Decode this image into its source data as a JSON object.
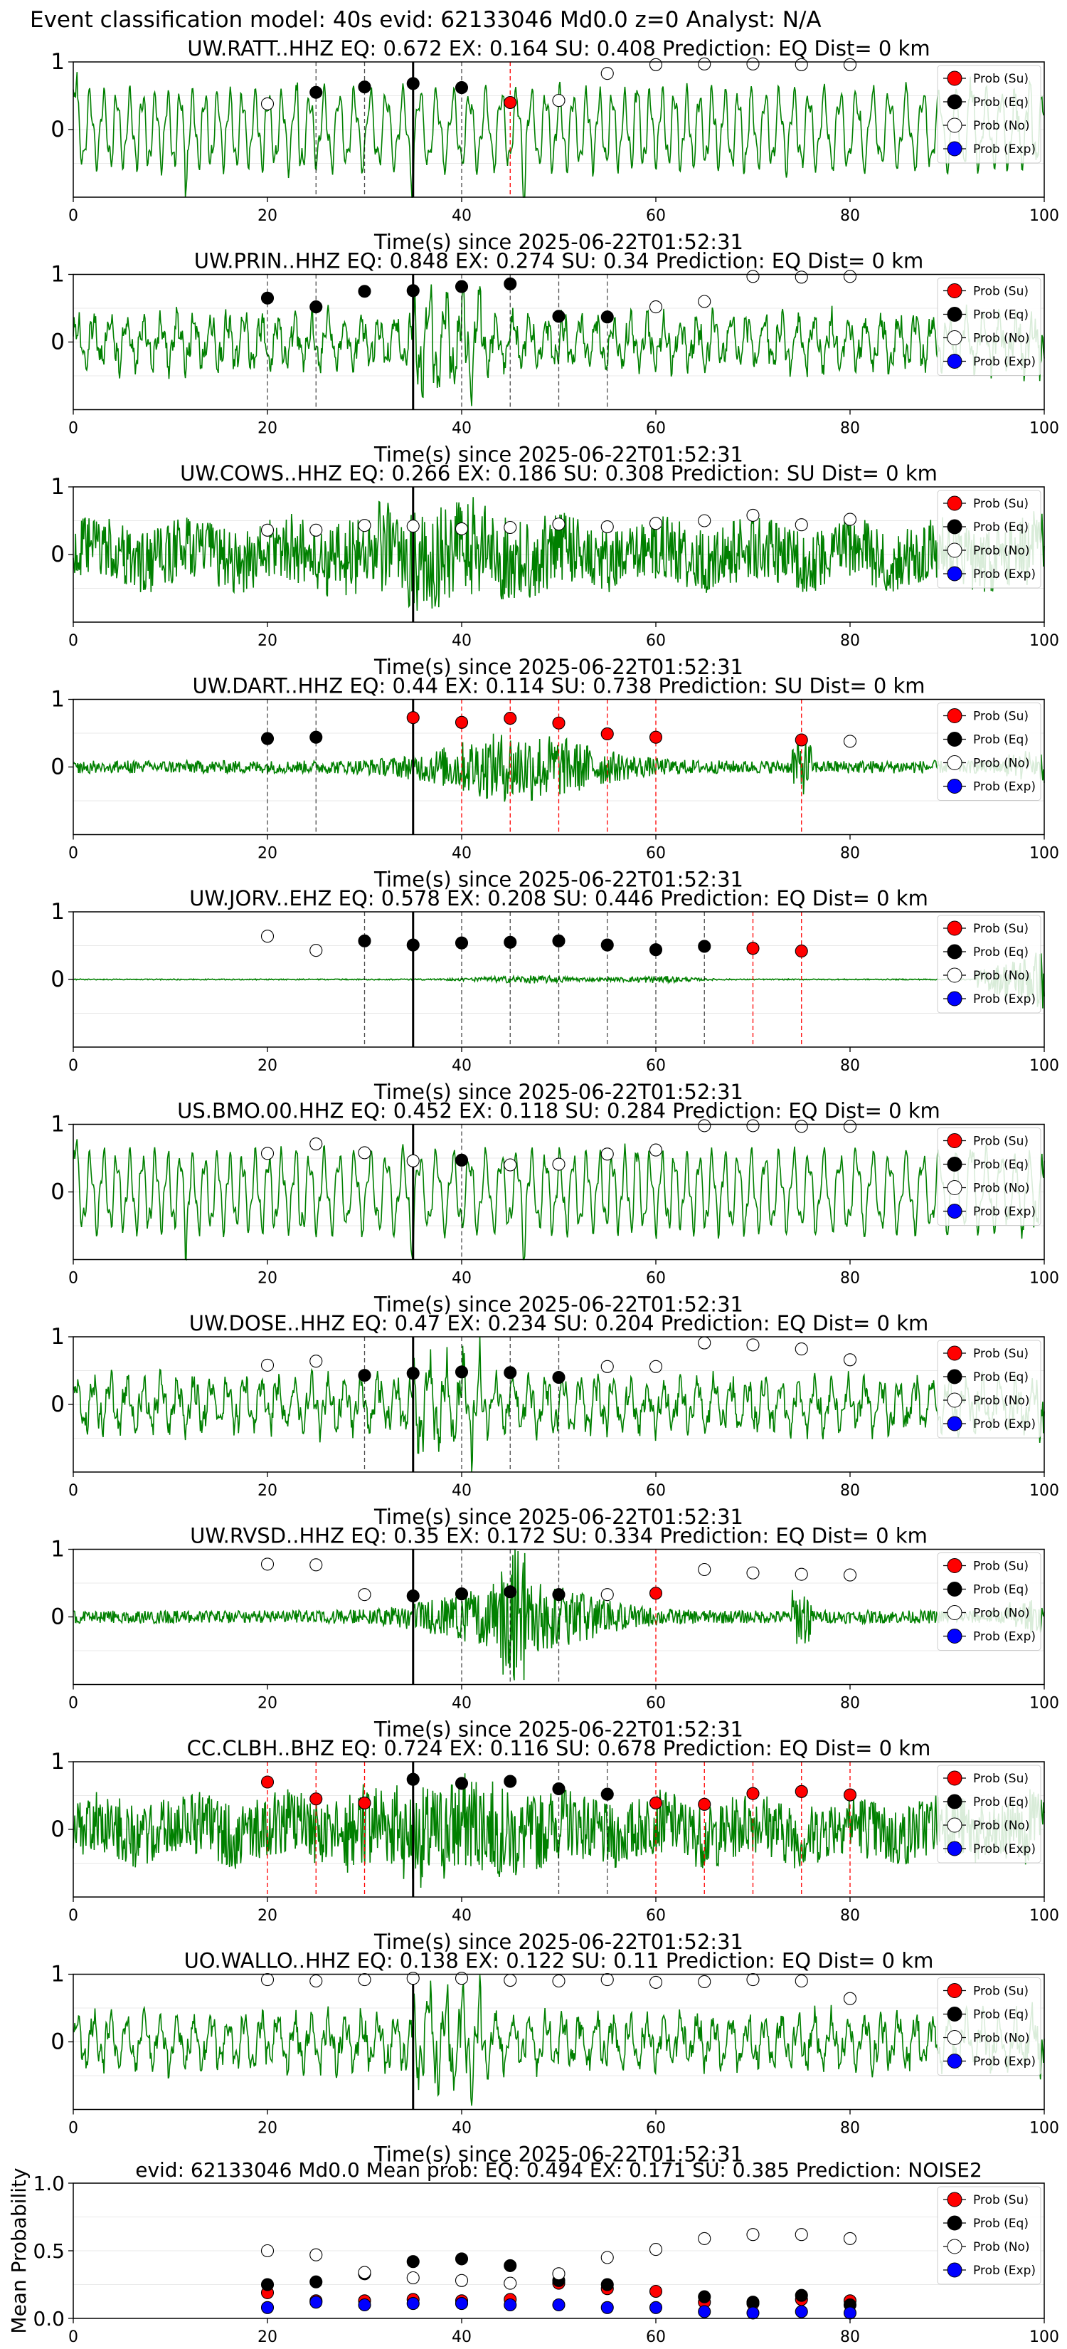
{
  "suptitle": "Event classification model: 40s evid: 62133046 Md0.0 z=0 Analyst: N/A",
  "legend_labels": [
    "Prob (Su)",
    "Prob (Eq)",
    "Prob (No)",
    "Prob (Exp)"
  ],
  "colors": {
    "su": "#ff0000",
    "eq": "#000000",
    "no": "#ffffff",
    "exp": "#0000ff",
    "trace": "#008000"
  },
  "chart_data": [
    {
      "type": "line",
      "title": "UW.RATT..HHZ   EQ: 0.672  EX: 0.164  SU: 0.408   Prediction: EQ    Dist= 0 km",
      "xlabel": "Time(s) since 2025-06-22T01:52:31",
      "ylabel": "",
      "xlim": [
        0,
        100
      ],
      "ylim": [
        -1,
        1
      ],
      "xticks": [
        0,
        20,
        40,
        60,
        80,
        100
      ],
      "yticks": [
        0,
        1
      ],
      "grid": "y-only",
      "legend": "top-right",
      "waveform": "low-frequency",
      "pick_time": 35,
      "eq_dashed": [
        25,
        30,
        40
      ],
      "su_dashed": [
        45
      ],
      "points": [
        {
          "t": 20,
          "v": 0.38,
          "c": "no"
        },
        {
          "t": 25,
          "v": 0.55,
          "c": "eq"
        },
        {
          "t": 30,
          "v": 0.63,
          "c": "eq"
        },
        {
          "t": 35,
          "v": 0.68,
          "c": "eq"
        },
        {
          "t": 40,
          "v": 0.62,
          "c": "eq"
        },
        {
          "t": 45,
          "v": 0.4,
          "c": "su"
        },
        {
          "t": 50,
          "v": 0.43,
          "c": "no"
        },
        {
          "t": 55,
          "v": 0.83,
          "c": "no"
        },
        {
          "t": 60,
          "v": 0.96,
          "c": "no"
        },
        {
          "t": 65,
          "v": 0.97,
          "c": "no"
        },
        {
          "t": 70,
          "v": 0.97,
          "c": "no"
        },
        {
          "t": 75,
          "v": 0.96,
          "c": "no"
        },
        {
          "t": 80,
          "v": 0.96,
          "c": "no"
        }
      ]
    },
    {
      "type": "line",
      "title": "UW.PRIN..HHZ   EQ: 0.848  EX: 0.274  SU: 0.34   Prediction: EQ    Dist= 0 km",
      "xlabel": "Time(s) since 2025-06-22T01:52:31",
      "ylabel": "",
      "xlim": [
        0,
        100
      ],
      "ylim": [
        -1,
        1
      ],
      "xticks": [
        0,
        20,
        40,
        60,
        80,
        100
      ],
      "yticks": [
        0,
        1
      ],
      "grid": "y-only",
      "legend": "top-right",
      "waveform": "mixed",
      "pick_time": 35,
      "eq_dashed": [
        20,
        25,
        40,
        45,
        50,
        55
      ],
      "su_dashed": [],
      "points": [
        {
          "t": 20,
          "v": 0.65,
          "c": "eq"
        },
        {
          "t": 25,
          "v": 0.52,
          "c": "eq"
        },
        {
          "t": 30,
          "v": 0.75,
          "c": "eq"
        },
        {
          "t": 35,
          "v": 0.76,
          "c": "eq"
        },
        {
          "t": 40,
          "v": 0.82,
          "c": "eq"
        },
        {
          "t": 45,
          "v": 0.86,
          "c": "eq"
        },
        {
          "t": 50,
          "v": 0.38,
          "c": "eq"
        },
        {
          "t": 55,
          "v": 0.37,
          "c": "eq"
        },
        {
          "t": 60,
          "v": 0.52,
          "c": "no"
        },
        {
          "t": 65,
          "v": 0.6,
          "c": "no"
        },
        {
          "t": 70,
          "v": 0.97,
          "c": "no"
        },
        {
          "t": 75,
          "v": 0.96,
          "c": "no"
        },
        {
          "t": 80,
          "v": 0.97,
          "c": "no"
        }
      ]
    },
    {
      "type": "line",
      "title": "UW.COWS..HHZ   EQ: 0.266  EX: 0.186  SU: 0.308   Prediction: SU    Dist= 0 km",
      "xlabel": "Time(s) since 2025-06-22T01:52:31",
      "ylabel": "",
      "xlim": [
        0,
        100
      ],
      "ylim": [
        -1,
        1
      ],
      "xticks": [
        0,
        20,
        40,
        60,
        80,
        100
      ],
      "yticks": [
        0,
        1
      ],
      "grid": "y-only",
      "legend": "top-right",
      "waveform": "high-frequency",
      "pick_time": 35,
      "eq_dashed": [],
      "su_dashed": [],
      "points": [
        {
          "t": 20,
          "v": 0.36,
          "c": "no"
        },
        {
          "t": 25,
          "v": 0.36,
          "c": "no"
        },
        {
          "t": 30,
          "v": 0.43,
          "c": "no"
        },
        {
          "t": 35,
          "v": 0.42,
          "c": "no"
        },
        {
          "t": 40,
          "v": 0.38,
          "c": "no"
        },
        {
          "t": 45,
          "v": 0.4,
          "c": "no"
        },
        {
          "t": 50,
          "v": 0.45,
          "c": "no"
        },
        {
          "t": 55,
          "v": 0.41,
          "c": "no"
        },
        {
          "t": 60,
          "v": 0.46,
          "c": "no"
        },
        {
          "t": 65,
          "v": 0.5,
          "c": "no"
        },
        {
          "t": 70,
          "v": 0.58,
          "c": "no"
        },
        {
          "t": 75,
          "v": 0.44,
          "c": "no"
        },
        {
          "t": 80,
          "v": 0.52,
          "c": "no"
        }
      ]
    },
    {
      "type": "line",
      "title": "UW.DART..HHZ   EQ: 0.44  EX: 0.114  SU: 0.738   Prediction: SU    Dist= 0 km",
      "xlabel": "Time(s) since 2025-06-22T01:52:31",
      "ylabel": "",
      "xlim": [
        0,
        100
      ],
      "ylim": [
        -1,
        1
      ],
      "xticks": [
        0,
        20,
        40,
        60,
        80,
        100
      ],
      "yticks": [
        0,
        1
      ],
      "grid": "y-only",
      "legend": "top-right",
      "waveform": "burst",
      "pick_time": 35,
      "eq_dashed": [
        20,
        25
      ],
      "su_dashed": [
        40,
        45,
        50,
        55,
        60,
        75
      ],
      "points": [
        {
          "t": 20,
          "v": 0.42,
          "c": "eq"
        },
        {
          "t": 25,
          "v": 0.44,
          "c": "eq"
        },
        {
          "t": 35,
          "v": 0.73,
          "c": "su"
        },
        {
          "t": 40,
          "v": 0.66,
          "c": "su"
        },
        {
          "t": 45,
          "v": 0.72,
          "c": "su"
        },
        {
          "t": 50,
          "v": 0.65,
          "c": "su"
        },
        {
          "t": 55,
          "v": 0.49,
          "c": "su"
        },
        {
          "t": 60,
          "v": 0.44,
          "c": "su"
        },
        {
          "t": 75,
          "v": 0.4,
          "c": "su"
        },
        {
          "t": 80,
          "v": 0.38,
          "c": "no"
        }
      ]
    },
    {
      "type": "line",
      "title": "UW.JORV..EHZ   EQ: 0.578  EX: 0.208  SU: 0.446   Prediction: EQ    Dist= 0 km",
      "xlabel": "Time(s) since 2025-06-22T01:52:31",
      "ylabel": "",
      "xlim": [
        0,
        100
      ],
      "ylim": [
        -1,
        1
      ],
      "xticks": [
        0,
        20,
        40,
        60,
        80,
        100
      ],
      "yticks": [
        0,
        1
      ],
      "grid": "y-only",
      "legend": "top-right",
      "waveform": "flat",
      "pick_time": 35,
      "eq_dashed": [
        30,
        40,
        45,
        50,
        55,
        60,
        65
      ],
      "su_dashed": [
        70,
        75
      ],
      "points": [
        {
          "t": 20,
          "v": 0.64,
          "c": "no"
        },
        {
          "t": 25,
          "v": 0.43,
          "c": "no"
        },
        {
          "t": 30,
          "v": 0.57,
          "c": "eq"
        },
        {
          "t": 35,
          "v": 0.51,
          "c": "eq"
        },
        {
          "t": 40,
          "v": 0.54,
          "c": "eq"
        },
        {
          "t": 45,
          "v": 0.55,
          "c": "eq"
        },
        {
          "t": 50,
          "v": 0.57,
          "c": "eq"
        },
        {
          "t": 55,
          "v": 0.51,
          "c": "eq"
        },
        {
          "t": 60,
          "v": 0.44,
          "c": "eq"
        },
        {
          "t": 65,
          "v": 0.49,
          "c": "eq"
        },
        {
          "t": 70,
          "v": 0.46,
          "c": "su"
        },
        {
          "t": 75,
          "v": 0.42,
          "c": "su"
        }
      ]
    },
    {
      "type": "line",
      "title": "US.BMO.00.HHZ   EQ: 0.452  EX: 0.118  SU: 0.284   Prediction: EQ    Dist= 0 km",
      "xlabel": "Time(s) since 2025-06-22T01:52:31",
      "ylabel": "",
      "xlim": [
        0,
        100
      ],
      "ylim": [
        -1,
        1
      ],
      "xticks": [
        0,
        20,
        40,
        60,
        80,
        100
      ],
      "yticks": [
        0,
        1
      ],
      "grid": "y-only",
      "legend": "top-right",
      "waveform": "low-frequency",
      "pick_time": 35,
      "eq_dashed": [
        40
      ],
      "su_dashed": [],
      "points": [
        {
          "t": 20,
          "v": 0.57,
          "c": "no"
        },
        {
          "t": 25,
          "v": 0.71,
          "c": "no"
        },
        {
          "t": 30,
          "v": 0.58,
          "c": "no"
        },
        {
          "t": 35,
          "v": 0.46,
          "c": "no"
        },
        {
          "t": 40,
          "v": 0.47,
          "c": "eq"
        },
        {
          "t": 45,
          "v": 0.4,
          "c": "no"
        },
        {
          "t": 50,
          "v": 0.41,
          "c": "no"
        },
        {
          "t": 55,
          "v": 0.56,
          "c": "no"
        },
        {
          "t": 60,
          "v": 0.62,
          "c": "no"
        },
        {
          "t": 65,
          "v": 0.98,
          "c": "no"
        },
        {
          "t": 70,
          "v": 0.98,
          "c": "no"
        },
        {
          "t": 75,
          "v": 0.97,
          "c": "no"
        },
        {
          "t": 80,
          "v": 0.97,
          "c": "no"
        }
      ]
    },
    {
      "type": "line",
      "title": "UW.DOSE..HHZ   EQ: 0.47  EX: 0.234  SU: 0.204   Prediction: EQ    Dist= 0 km",
      "xlabel": "Time(s) since 2025-06-22T01:52:31",
      "ylabel": "",
      "xlim": [
        0,
        100
      ],
      "ylim": [
        -1,
        1
      ],
      "xticks": [
        0,
        20,
        40,
        60,
        80,
        100
      ],
      "yticks": [
        0,
        1
      ],
      "grid": "y-only",
      "legend": "top-right",
      "waveform": "mixed",
      "pick_time": 35,
      "eq_dashed": [
        30,
        40,
        45,
        50
      ],
      "su_dashed": [],
      "points": [
        {
          "t": 20,
          "v": 0.58,
          "c": "no"
        },
        {
          "t": 25,
          "v": 0.64,
          "c": "no"
        },
        {
          "t": 30,
          "v": 0.43,
          "c": "eq"
        },
        {
          "t": 35,
          "v": 0.46,
          "c": "eq"
        },
        {
          "t": 40,
          "v": 0.48,
          "c": "eq"
        },
        {
          "t": 45,
          "v": 0.47,
          "c": "eq"
        },
        {
          "t": 50,
          "v": 0.4,
          "c": "eq"
        },
        {
          "t": 55,
          "v": 0.56,
          "c": "no"
        },
        {
          "t": 60,
          "v": 0.56,
          "c": "no"
        },
        {
          "t": 65,
          "v": 0.91,
          "c": "no"
        },
        {
          "t": 70,
          "v": 0.88,
          "c": "no"
        },
        {
          "t": 75,
          "v": 0.82,
          "c": "no"
        },
        {
          "t": 80,
          "v": 0.66,
          "c": "no"
        }
      ]
    },
    {
      "type": "line",
      "title": "UW.RVSD..HHZ   EQ: 0.35  EX: 0.172  SU: 0.334   Prediction: EQ    Dist= 0 km",
      "xlabel": "Time(s) since 2025-06-22T01:52:31",
      "ylabel": "",
      "xlim": [
        0,
        100
      ],
      "ylim": [
        -1,
        1
      ],
      "xticks": [
        0,
        20,
        40,
        60,
        80,
        100
      ],
      "yticks": [
        0,
        1
      ],
      "grid": "y-only",
      "legend": "top-right",
      "waveform": "burst",
      "pick_time": 35,
      "eq_dashed": [
        40,
        45,
        50
      ],
      "su_dashed": [
        60
      ],
      "points": [
        {
          "t": 20,
          "v": 0.78,
          "c": "no"
        },
        {
          "t": 25,
          "v": 0.77,
          "c": "no"
        },
        {
          "t": 30,
          "v": 0.33,
          "c": "no"
        },
        {
          "t": 35,
          "v": 0.31,
          "c": "eq"
        },
        {
          "t": 40,
          "v": 0.34,
          "c": "eq"
        },
        {
          "t": 45,
          "v": 0.37,
          "c": "eq"
        },
        {
          "t": 50,
          "v": 0.33,
          "c": "eq"
        },
        {
          "t": 55,
          "v": 0.33,
          "c": "no"
        },
        {
          "t": 60,
          "v": 0.35,
          "c": "su"
        },
        {
          "t": 65,
          "v": 0.7,
          "c": "no"
        },
        {
          "t": 70,
          "v": 0.65,
          "c": "no"
        },
        {
          "t": 75,
          "v": 0.63,
          "c": "no"
        },
        {
          "t": 80,
          "v": 0.62,
          "c": "no"
        }
      ]
    },
    {
      "type": "line",
      "title": "CC.CLBH..BHZ   EQ: 0.724  EX: 0.116  SU: 0.678   Prediction: EQ    Dist= 0 km",
      "xlabel": "Time(s) since 2025-06-22T01:52:31",
      "ylabel": "",
      "xlim": [
        0,
        100
      ],
      "ylim": [
        -1,
        1
      ],
      "xticks": [
        0,
        20,
        40,
        60,
        80,
        100
      ],
      "yticks": [
        0,
        1
      ],
      "grid": "y-only",
      "legend": "top-right",
      "waveform": "high-frequency",
      "pick_time": 35,
      "eq_dashed": [
        50,
        55
      ],
      "su_dashed": [
        20,
        25,
        30,
        60,
        65,
        70,
        75,
        80
      ],
      "points": [
        {
          "t": 20,
          "v": 0.7,
          "c": "su"
        },
        {
          "t": 25,
          "v": 0.45,
          "c": "su"
        },
        {
          "t": 30,
          "v": 0.39,
          "c": "su"
        },
        {
          "t": 35,
          "v": 0.74,
          "c": "eq"
        },
        {
          "t": 40,
          "v": 0.68,
          "c": "eq"
        },
        {
          "t": 45,
          "v": 0.71,
          "c": "eq"
        },
        {
          "t": 50,
          "v": 0.6,
          "c": "eq"
        },
        {
          "t": 55,
          "v": 0.52,
          "c": "eq"
        },
        {
          "t": 60,
          "v": 0.39,
          "c": "su"
        },
        {
          "t": 65,
          "v": 0.37,
          "c": "su"
        },
        {
          "t": 70,
          "v": 0.53,
          "c": "su"
        },
        {
          "t": 75,
          "v": 0.56,
          "c": "su"
        },
        {
          "t": 80,
          "v": 0.51,
          "c": "su"
        }
      ]
    },
    {
      "type": "line",
      "title": "UO.WALLO..HHZ   EQ: 0.138  EX: 0.122  SU: 0.11   Prediction: EQ    Dist= 0 km",
      "xlabel": "Time(s) since 2025-06-22T01:52:31",
      "ylabel": "",
      "xlim": [
        0,
        100
      ],
      "ylim": [
        -1,
        1
      ],
      "xticks": [
        0,
        20,
        40,
        60,
        80,
        100
      ],
      "yticks": [
        0,
        1
      ],
      "grid": "y-only",
      "legend": "top-right",
      "waveform": "mixed",
      "pick_time": 35,
      "eq_dashed": [],
      "su_dashed": [],
      "points": [
        {
          "t": 20,
          "v": 0.92,
          "c": "no"
        },
        {
          "t": 25,
          "v": 0.9,
          "c": "no"
        },
        {
          "t": 30,
          "v": 0.92,
          "c": "no"
        },
        {
          "t": 35,
          "v": 0.94,
          "c": "no"
        },
        {
          "t": 40,
          "v": 0.94,
          "c": "no"
        },
        {
          "t": 45,
          "v": 0.91,
          "c": "no"
        },
        {
          "t": 50,
          "v": 0.9,
          "c": "no"
        },
        {
          "t": 55,
          "v": 0.92,
          "c": "no"
        },
        {
          "t": 60,
          "v": 0.88,
          "c": "no"
        },
        {
          "t": 65,
          "v": 0.89,
          "c": "no"
        },
        {
          "t": 70,
          "v": 0.92,
          "c": "no"
        },
        {
          "t": 75,
          "v": 0.9,
          "c": "no"
        },
        {
          "t": 80,
          "v": 0.64,
          "c": "no"
        }
      ]
    },
    {
      "type": "scatter",
      "title": "evid: 62133046  Md0.0   Mean prob:   EQ: 0.494  EX: 0.171  SU: 0.385   Prediction: NOISE2",
      "xlabel": "",
      "ylabel": "Mean Probability",
      "xlim": [
        0,
        100
      ],
      "ylim": [
        0,
        1
      ],
      "xticks": [
        0,
        20,
        40,
        60,
        80,
        100
      ],
      "yticks": [
        0.0,
        0.5,
        1.0
      ],
      "ytick_labels": [
        "0.0",
        "0.5",
        "1.0"
      ],
      "grid": "y-only",
      "legend": "top-right",
      "x": [
        20,
        25,
        30,
        35,
        40,
        45,
        50,
        55,
        60,
        65,
        70,
        75,
        80
      ],
      "series": [
        {
          "name": "Prob (Su)",
          "c": "su",
          "values": [
            0.19,
            0.13,
            0.13,
            0.14,
            0.13,
            0.14,
            0.26,
            0.22,
            0.2,
            0.12,
            0.11,
            0.14,
            0.13
          ]
        },
        {
          "name": "Prob (Eq)",
          "c": "eq",
          "values": [
            0.25,
            0.27,
            0.33,
            0.42,
            0.44,
            0.39,
            0.28,
            0.25,
            null,
            0.16,
            0.12,
            0.17,
            0.1
          ]
        },
        {
          "name": "Prob (No)",
          "c": "no",
          "values": [
            0.5,
            0.47,
            0.34,
            0.3,
            0.28,
            0.26,
            0.33,
            0.45,
            0.51,
            0.59,
            0.62,
            0.62,
            0.59
          ]
        },
        {
          "name": "Prob (Exp)",
          "c": "exp",
          "values": [
            0.08,
            0.12,
            0.1,
            0.11,
            0.11,
            0.1,
            0.1,
            0.08,
            0.08,
            0.05,
            0.04,
            0.05,
            0.04
          ]
        }
      ]
    }
  ]
}
